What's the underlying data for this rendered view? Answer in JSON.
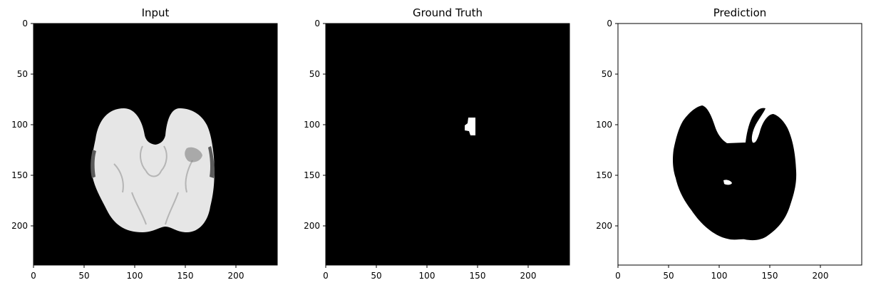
{
  "chart_data": [
    {
      "type": "heatmap",
      "title": "Input",
      "colormap": "gray",
      "xlim": [
        0,
        240
      ],
      "ylim": [
        240,
        0
      ],
      "x_ticks": [
        0,
        50,
        100,
        150,
        200
      ],
      "y_ticks": [
        0,
        50,
        100,
        150,
        200
      ],
      "background": "#000000",
      "foreground": "#e8e8e8",
      "content": "grayscale axial brain MRI slice"
    },
    {
      "type": "heatmap",
      "title": "Ground Truth",
      "colormap": "gray",
      "xlim": [
        0,
        240
      ],
      "ylim": [
        240,
        0
      ],
      "x_ticks": [
        0,
        50,
        100,
        150,
        200
      ],
      "y_ticks": [
        0,
        50,
        100,
        150,
        200
      ],
      "background": "#000000",
      "foreground": "#ffffff",
      "content": "small white lesion mask near x 140-150, y 95-110"
    },
    {
      "type": "heatmap",
      "title": "Prediction",
      "colormap": "gray",
      "xlim": [
        0,
        240
      ],
      "ylim": [
        240,
        0
      ],
      "x_ticks": [
        0,
        50,
        100,
        150,
        200
      ],
      "y_ticks": [
        0,
        50,
        100,
        150,
        200
      ],
      "background": "#ffffff",
      "foreground": "#000000",
      "content": "black brain-shaped region on white background"
    }
  ]
}
